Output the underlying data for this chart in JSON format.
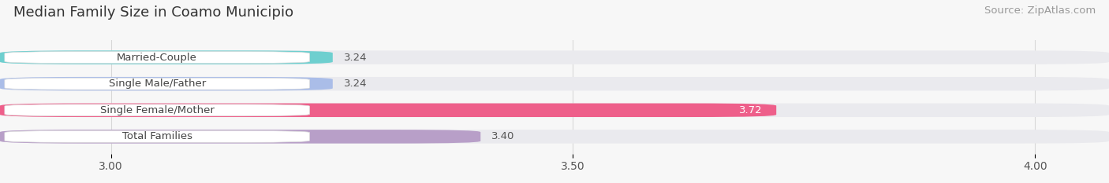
{
  "title": "Median Family Size in Coamo Municipio",
  "source": "Source: ZipAtlas.com",
  "categories": [
    "Married-Couple",
    "Single Male/Father",
    "Single Female/Mother",
    "Total Families"
  ],
  "values": [
    3.24,
    3.24,
    3.72,
    3.4
  ],
  "bar_colors": [
    "#6ECFCF",
    "#AABDE8",
    "#EE5F8A",
    "#B89FC8"
  ],
  "bar_bg_color": "#EAEAEE",
  "xlim_left": 2.88,
  "xlim_right": 4.08,
  "xmin": 3.0,
  "xticks": [
    3.0,
    3.5,
    4.0
  ],
  "value_colors": [
    "#555555",
    "#555555",
    "#ffffff",
    "#555555"
  ],
  "title_fontsize": 13,
  "source_fontsize": 9.5,
  "tick_fontsize": 10,
  "label_fontsize": 9.5,
  "value_fontsize": 9.5,
  "bar_height": 0.52,
  "background_color": "#f7f7f7",
  "label_box_color": "#ffffff",
  "grid_color": "#d8d8d8"
}
